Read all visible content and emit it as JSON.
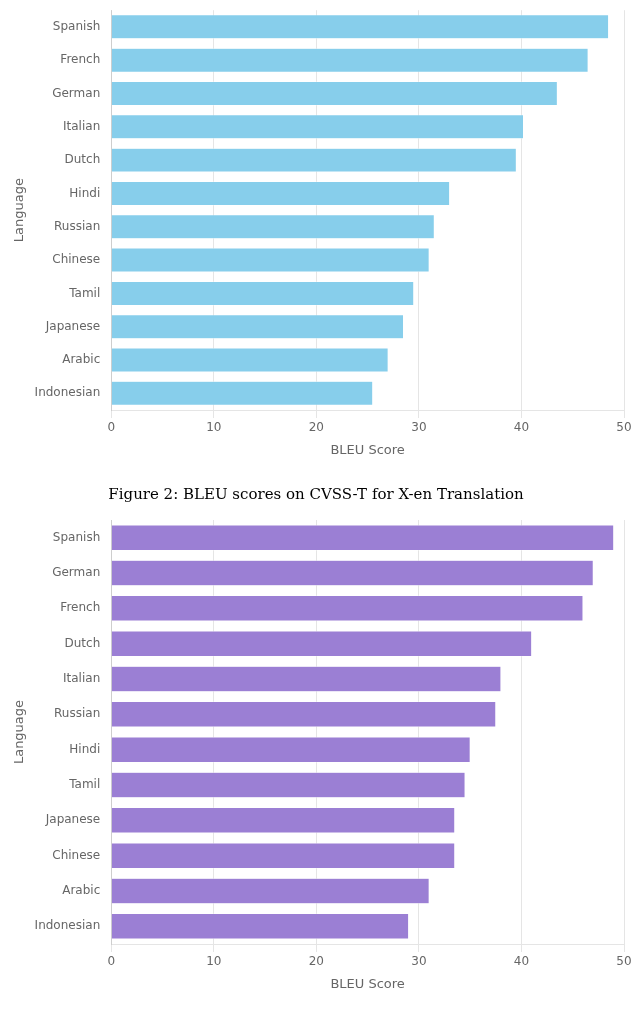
{
  "chart_data": [
    {
      "type": "bar",
      "orientation": "horizontal",
      "categories": [
        "Spanish",
        "French",
        "German",
        "Italian",
        "Dutch",
        "Hindi",
        "Russian",
        "Chinese",
        "Tamil",
        "Japanese",
        "Arabic",
        "Indonesian"
      ],
      "values": [
        48.5,
        46.5,
        43.5,
        40.2,
        39.5,
        33.0,
        31.5,
        31.0,
        29.5,
        28.5,
        27.0,
        25.5
      ],
      "color": "#87CEEB",
      "x_label": "BLEU Score",
      "y_label": "Language",
      "xlim": [
        0,
        50
      ],
      "xticks": [
        0,
        10,
        20,
        30,
        40,
        50
      ],
      "grid": true
    },
    {
      "type": "bar",
      "orientation": "horizontal",
      "title": "Figure 2: BLEU scores on CVSS-T for X-en Translation",
      "categories": [
        "Spanish",
        "German",
        "French",
        "Dutch",
        "Italian",
        "Russian",
        "Hindi",
        "Tamil",
        "Japanese",
        "Chinese",
        "Arabic",
        "Indonesian"
      ],
      "values": [
        49.0,
        47.0,
        46.0,
        41.0,
        38.0,
        37.5,
        35.0,
        34.5,
        33.5,
        33.5,
        31.0,
        29.0
      ],
      "color": "#9B7FD4",
      "x_label": "BLEU Score",
      "y_label": "Language",
      "xlim": [
        0,
        50
      ],
      "xticks": [
        0,
        10,
        20,
        30,
        40,
        50
      ],
      "grid": true
    }
  ]
}
